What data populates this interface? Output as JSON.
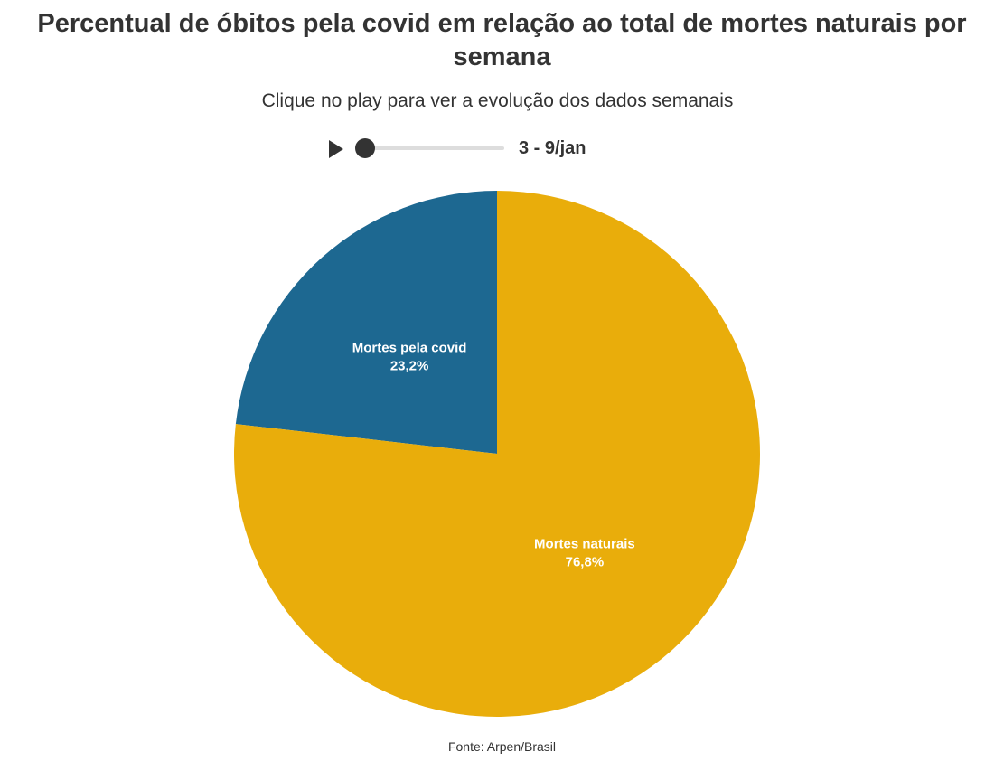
{
  "title": "Percentual de óbitos pela covid em relação ao total de mortes naturais por semana",
  "subtitle": "Clique no play para ver a evolução dos dados semanais",
  "player": {
    "play_icon": "play-icon",
    "current_week": "3 - 9/jan",
    "slider_position": 0
  },
  "source": "Fonte: Arpen/Brasil",
  "colors": {
    "covid": "#1d6891",
    "natural": "#e9ad0b",
    "label": "#ffffff"
  },
  "chart_data": {
    "type": "pie",
    "start_angle": "12 o'clock",
    "direction": "counterclockwise",
    "slices": [
      {
        "label": "Mortes pela covid",
        "value": 23.2,
        "value_label": "23,2%"
      },
      {
        "label": "Mortes naturais",
        "value": 76.8,
        "value_label": "76,8%"
      }
    ]
  }
}
